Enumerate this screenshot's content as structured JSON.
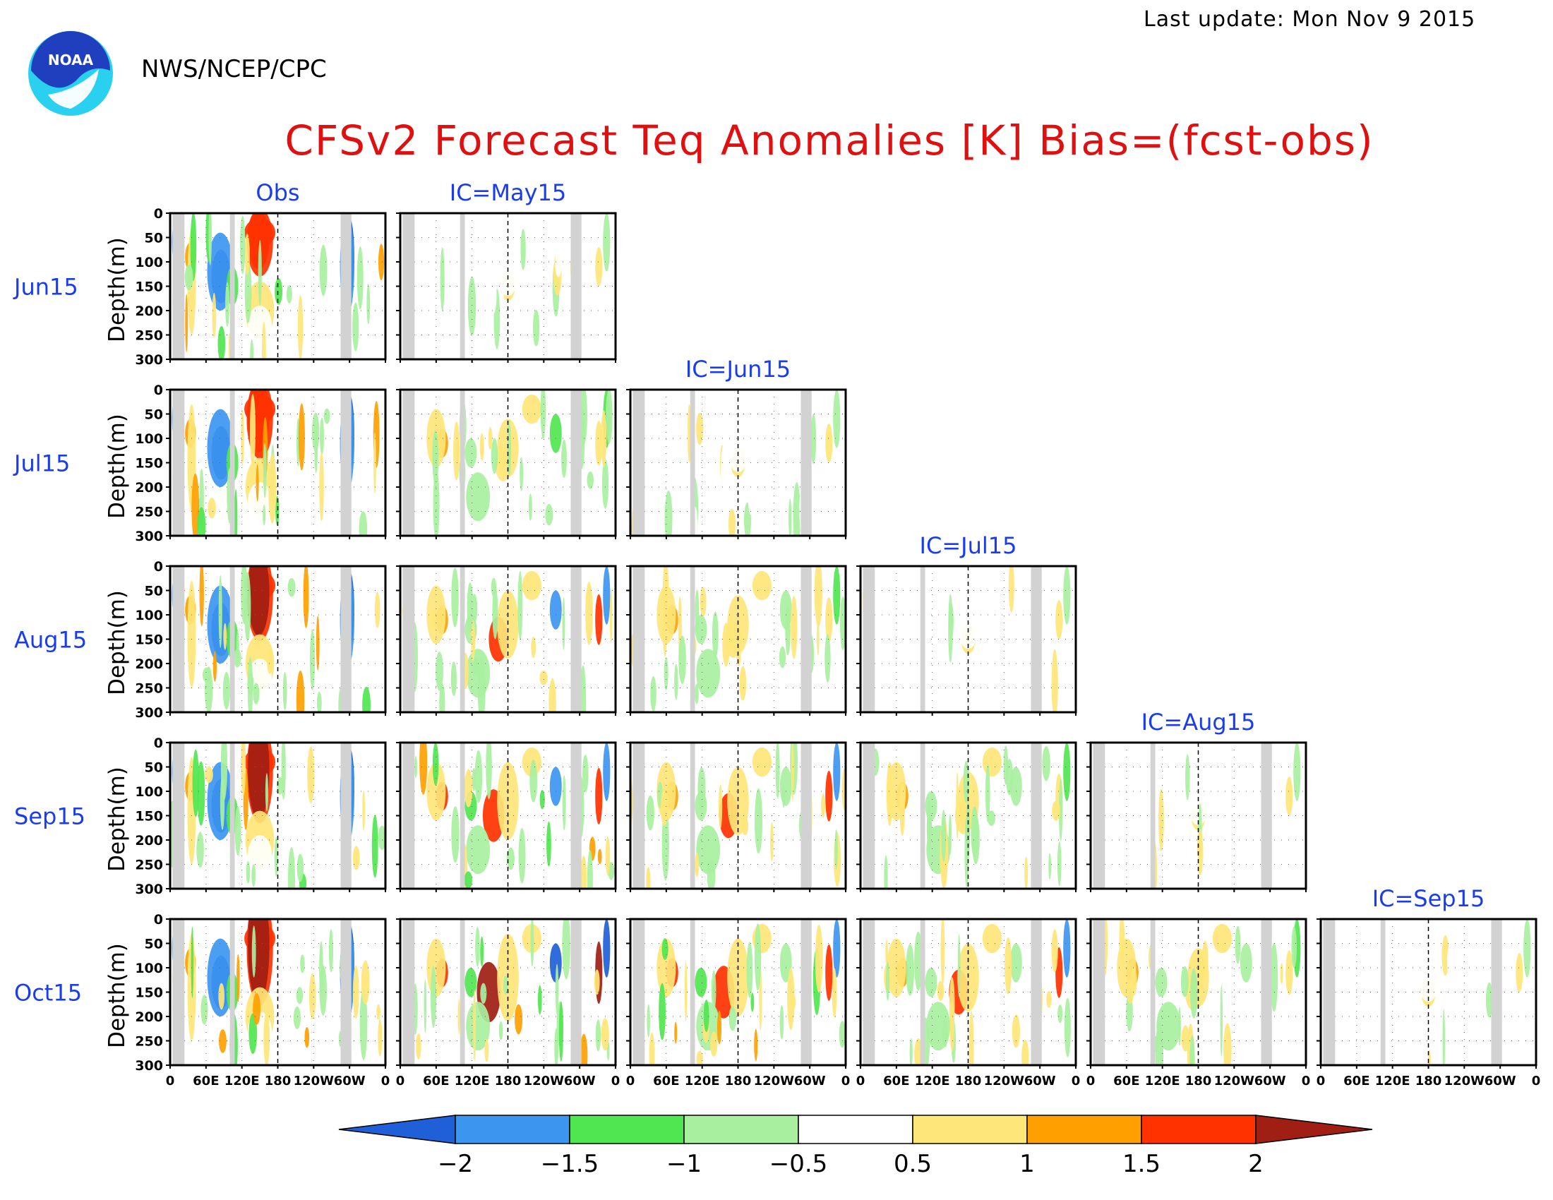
{
  "header": {
    "last_update": "Last update: Mon Nov 9 2015",
    "agency": "NWS/NCEP/CPC",
    "logo_text": "NOAA"
  },
  "chart_data": {
    "type": "heatmap",
    "title": "CFSv2 Forecast Teq Anomalies [K] Bias=(fcst-obs)",
    "ylabel": "Depth(m)",
    "ylim": [
      300,
      0
    ],
    "y_ticks": [
      "0",
      "50",
      "100",
      "150",
      "200",
      "250",
      "300"
    ],
    "x_ticks": [
      "0",
      "60E",
      "120E",
      "180",
      "120W",
      "60W",
      "0"
    ],
    "x_range_deg": [
      0,
      360
    ],
    "columns": [
      "Obs",
      "IC=May15",
      "IC=Jun15",
      "IC=Jul15",
      "IC=Aug15",
      "IC=Sep15"
    ],
    "rows": [
      "Jun15",
      "Jul15",
      "Aug15",
      "Sep15",
      "Oct15"
    ],
    "colorbar": {
      "levels": [
        "-2",
        "-1.5",
        "-1",
        "-0.5",
        "0.5",
        "1",
        "1.5",
        "2"
      ],
      "colors": [
        "#1f5fd8",
        "#3c96f0",
        "#50e650",
        "#a8f0a0",
        "#ffffff",
        "#ffe678",
        "#ffa000",
        "#ff3200",
        "#a01e14"
      ]
    }
  },
  "colors": {
    "title": "#e01010",
    "panel_label": "#1a3cf0",
    "land_mask": "#d2d2d2"
  }
}
